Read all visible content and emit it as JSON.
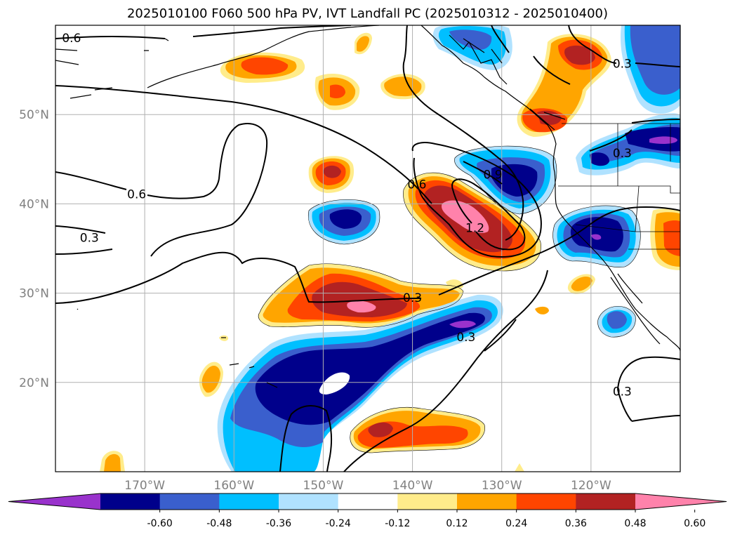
{
  "title": "2025010100 F060 500 hPa PV, IVT Landfall PC (2025010312 - 2025010400)",
  "map": {
    "lon_range": [
      -180,
      -110
    ],
    "lat_range": [
      10,
      60
    ],
    "lat_labels": [
      "20°N",
      "30°N",
      "40°N",
      "50°N"
    ],
    "lat_values": [
      20,
      30,
      40,
      50
    ],
    "lon_labels": [
      "170°W",
      "160°W",
      "150°W",
      "140°W",
      "130°W",
      "120°W"
    ],
    "lon_values": [
      -170,
      -160,
      -150,
      -140,
      -130,
      -120
    ],
    "grid": true
  },
  "contours": {
    "color": "#000000",
    "labels": [
      {
        "text": "0.6",
        "lon": -178.2,
        "lat": 58.6
      },
      {
        "text": "0.6",
        "lon": -170.9,
        "lat": 41.1
      },
      {
        "text": "0.3",
        "lon": -176.2,
        "lat": 36.2
      },
      {
        "text": "0.6",
        "lon": -139.5,
        "lat": 42.2
      },
      {
        "text": "0.9",
        "lon": -131.0,
        "lat": 43.3
      },
      {
        "text": "1.2",
        "lon": -133.0,
        "lat": 37.3
      },
      {
        "text": "0.3",
        "lon": -140.0,
        "lat": 29.5
      },
      {
        "text": "0.3",
        "lon": -134.0,
        "lat": 25.1
      },
      {
        "text": "0.3",
        "lon": -116.5,
        "lat": 55.7
      },
      {
        "text": "0.3",
        "lon": -116.5,
        "lat": 45.7
      },
      {
        "text": "0.3",
        "lon": -116.5,
        "lat": 19.0
      }
    ]
  },
  "colorbar": {
    "ticks": [
      "-0.60",
      "-0.48",
      "-0.36",
      "-0.24",
      "-0.12",
      "0.12",
      "0.24",
      "0.36",
      "0.48",
      "0.60"
    ],
    "colors": [
      "#9932CC",
      "#00008B",
      "#3A5FCD",
      "#00BFFF",
      "#B0E2FF",
      "#FFFFFF",
      "#FFEC8B",
      "#FFA500",
      "#FF4500",
      "#B22222",
      "#FF82AB"
    ]
  }
}
